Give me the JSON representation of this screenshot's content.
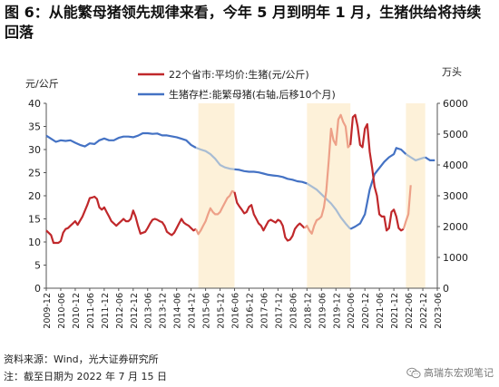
{
  "title": "图 6：从能繁母猪领先规律来看，今年 5 月到明年 1 月，生猪供给将持续回落",
  "source": "资料来源：Wind，光大证券研究所",
  "note": "注：截至日期为 2022 年 7 月 15 日",
  "watermark": "高瑞东宏观笔记",
  "chart_data": {
    "type": "line",
    "left_axis": {
      "label": "元/公斤",
      "ticks": [
        0,
        5,
        10,
        15,
        20,
        25,
        30,
        35,
        40
      ],
      "ylim": [
        0,
        40
      ]
    },
    "right_axis": {
      "label": "万头",
      "ticks": [
        0,
        1000,
        2000,
        3000,
        4000,
        5000,
        6000
      ],
      "ylim": [
        0,
        6000
      ]
    },
    "x_ticks": [
      "2009-12",
      "2010-06",
      "2010-12",
      "2011-06",
      "2011-12",
      "2012-06",
      "2012-12",
      "2013-06",
      "2013-12",
      "2014-06",
      "2014-12",
      "2015-06",
      "2015-12",
      "2016-06",
      "2016-12",
      "2017-06",
      "2017-12",
      "2018-06",
      "2018-12",
      "2019-06",
      "2019-12",
      "2020-06",
      "2020-12",
      "2021-06",
      "2021-12",
      "2022-06",
      "2022-12",
      "2023-06"
    ],
    "x_start": "2009-12",
    "x_end": "2023-06",
    "shaded_ranges": [
      [
        "2015-03",
        "2016-06"
      ],
      [
        "2018-12",
        "2020-06"
      ],
      [
        "2022-05",
        "2023-01"
      ]
    ],
    "colors": {
      "price": "#c0282b",
      "price_light": "#eda088",
      "sows": "#4472c4",
      "sows_light": "#a8bcd3",
      "shade": "#fdf1d9"
    },
    "legend_placement": "top-center",
    "series": [
      {
        "name": "22个省市:平均价:生猪(元/公斤)",
        "axis": "left",
        "points": [
          [
            "2009-12",
            12.5
          ],
          [
            "2010-02",
            11.5
          ],
          [
            "2010-03",
            9.8
          ],
          [
            "2010-05",
            9.8
          ],
          [
            "2010-06",
            10.2
          ],
          [
            "2010-07",
            12.0
          ],
          [
            "2010-08",
            12.8
          ],
          [
            "2010-09",
            13.0
          ],
          [
            "2010-10",
            13.5
          ],
          [
            "2010-11",
            14.0
          ],
          [
            "2010-12",
            14.5
          ],
          [
            "2011-01",
            13.7
          ],
          [
            "2011-03",
            15.5
          ],
          [
            "2011-05",
            18.0
          ],
          [
            "2011-06",
            19.5
          ],
          [
            "2011-07",
            19.6
          ],
          [
            "2011-08",
            19.8
          ],
          [
            "2011-09",
            19.3
          ],
          [
            "2011-10",
            17.5
          ],
          [
            "2011-11",
            17.0
          ],
          [
            "2011-12",
            17.5
          ],
          [
            "2012-01",
            16.5
          ],
          [
            "2012-02",
            15.5
          ],
          [
            "2012-03",
            14.5
          ],
          [
            "2012-04",
            14.0
          ],
          [
            "2012-05",
            13.5
          ],
          [
            "2012-06",
            14.0
          ],
          [
            "2012-07",
            14.5
          ],
          [
            "2012-08",
            15.0
          ],
          [
            "2012-09",
            14.5
          ],
          [
            "2012-10",
            14.5
          ],
          [
            "2012-11",
            15.0
          ],
          [
            "2012-12",
            16.8
          ],
          [
            "2013-01",
            15.5
          ],
          [
            "2013-02",
            13.5
          ],
          [
            "2013-03",
            11.8
          ],
          [
            "2013-04",
            12.0
          ],
          [
            "2013-05",
            12.2
          ],
          [
            "2013-06",
            13.0
          ],
          [
            "2013-07",
            14.0
          ],
          [
            "2013-08",
            14.8
          ],
          [
            "2013-09",
            15.0
          ],
          [
            "2013-10",
            14.8
          ],
          [
            "2013-11",
            14.5
          ],
          [
            "2013-12",
            14.3
          ],
          [
            "2014-01",
            13.5
          ],
          [
            "2014-02",
            12.2
          ],
          [
            "2014-03",
            11.8
          ],
          [
            "2014-04",
            11.5
          ],
          [
            "2014-05",
            12.0
          ],
          [
            "2014-06",
            13.0
          ],
          [
            "2014-07",
            14.0
          ],
          [
            "2014-08",
            15.0
          ],
          [
            "2014-09",
            14.2
          ],
          [
            "2014-10",
            13.8
          ],
          [
            "2014-11",
            13.5
          ],
          [
            "2014-12",
            13.0
          ],
          [
            "2015-01",
            12.5
          ],
          [
            "2015-02",
            12.8
          ],
          [
            "2015-03",
            11.7
          ],
          [
            "2015-04",
            12.5
          ],
          [
            "2015-05",
            13.5
          ],
          [
            "2015-06",
            14.5
          ],
          [
            "2015-07",
            16.0
          ],
          [
            "2015-08",
            17.3
          ],
          [
            "2015-09",
            16.5
          ],
          [
            "2015-10",
            16.0
          ],
          [
            "2015-11",
            16.0
          ],
          [
            "2015-12",
            16.5
          ],
          [
            "2016-01",
            17.5
          ],
          [
            "2016-02",
            18.5
          ],
          [
            "2016-03",
            19.5
          ],
          [
            "2016-04",
            20.0
          ],
          [
            "2016-05",
            21.0
          ],
          [
            "2016-06",
            20.8
          ],
          [
            "2016-07",
            18.5
          ],
          [
            "2016-08",
            17.7
          ],
          [
            "2016-09",
            17.0
          ],
          [
            "2016-10",
            16.2
          ],
          [
            "2016-11",
            16.5
          ],
          [
            "2016-12",
            17.6
          ],
          [
            "2017-01",
            18.0
          ],
          [
            "2017-02",
            16.0
          ],
          [
            "2017-03",
            15.0
          ],
          [
            "2017-04",
            14.0
          ],
          [
            "2017-05",
            13.5
          ],
          [
            "2017-06",
            12.5
          ],
          [
            "2017-07",
            13.5
          ],
          [
            "2017-08",
            14.5
          ],
          [
            "2017-09",
            14.8
          ],
          [
            "2017-10",
            14.5
          ],
          [
            "2017-11",
            14.2
          ],
          [
            "2017-12",
            14.8
          ],
          [
            "2018-01",
            14.5
          ],
          [
            "2018-02",
            13.5
          ],
          [
            "2018-03",
            11.0
          ],
          [
            "2018-04",
            10.3
          ],
          [
            "2018-05",
            10.5
          ],
          [
            "2018-06",
            11.3
          ],
          [
            "2018-07",
            12.8
          ],
          [
            "2018-08",
            13.5
          ],
          [
            "2018-09",
            14.0
          ],
          [
            "2018-10",
            13.5
          ],
          [
            "2018-11",
            13.0
          ],
          [
            "2018-12",
            13.5
          ],
          [
            "2019-01",
            12.5
          ],
          [
            "2019-02",
            11.8
          ],
          [
            "2019-03",
            13.5
          ],
          [
            "2019-04",
            14.7
          ],
          [
            "2019-05",
            15.0
          ],
          [
            "2019-06",
            15.5
          ],
          [
            "2019-07",
            17.5
          ],
          [
            "2019-08",
            21.0
          ],
          [
            "2019-09",
            27.5
          ],
          [
            "2019-10",
            34.5
          ],
          [
            "2019-11",
            32.0
          ],
          [
            "2019-12",
            31.0
          ],
          [
            "2020-01",
            36.5
          ],
          [
            "2020-02",
            37.5
          ],
          [
            "2020-03",
            36.0
          ],
          [
            "2020-04",
            35.0
          ],
          [
            "2020-05",
            30.5
          ],
          [
            "2020-06",
            31.0
          ],
          [
            "2020-07",
            37.0
          ],
          [
            "2020-08",
            37.5
          ],
          [
            "2020-09",
            35.0
          ],
          [
            "2020-10",
            31.0
          ],
          [
            "2020-11",
            30.5
          ],
          [
            "2020-12",
            34.5
          ],
          [
            "2021-01",
            35.5
          ],
          [
            "2021-02",
            29.5
          ],
          [
            "2021-03",
            26.0
          ],
          [
            "2021-04",
            22.0
          ],
          [
            "2021-05",
            20.0
          ],
          [
            "2021-06",
            16.0
          ],
          [
            "2021-07",
            15.5
          ],
          [
            "2021-08",
            15.5
          ],
          [
            "2021-09",
            12.5
          ],
          [
            "2021-10",
            13.0
          ],
          [
            "2021-11",
            16.5
          ],
          [
            "2021-12",
            17.0
          ],
          [
            "2022-01",
            15.5
          ],
          [
            "2022-02",
            13.0
          ],
          [
            "2022-03",
            12.5
          ],
          [
            "2022-04",
            12.8
          ],
          [
            "2022-05",
            14.5
          ],
          [
            "2022-06",
            16.0
          ],
          [
            "2022-07",
            22.3
          ]
        ]
      },
      {
        "name": "生猪存栏:能繁母猪(右轴,后移10个月)",
        "axis": "right",
        "points": [
          [
            "2009-12",
            4950
          ],
          [
            "2010-02",
            4850
          ],
          [
            "2010-04",
            4750
          ],
          [
            "2010-06",
            4800
          ],
          [
            "2010-08",
            4780
          ],
          [
            "2010-10",
            4800
          ],
          [
            "2010-12",
            4720
          ],
          [
            "2011-02",
            4650
          ],
          [
            "2011-04",
            4600
          ],
          [
            "2011-06",
            4700
          ],
          [
            "2011-08",
            4680
          ],
          [
            "2011-10",
            4800
          ],
          [
            "2011-12",
            4860
          ],
          [
            "2012-02",
            4800
          ],
          [
            "2012-04",
            4800
          ],
          [
            "2012-06",
            4880
          ],
          [
            "2012-08",
            4920
          ],
          [
            "2012-10",
            4920
          ],
          [
            "2012-12",
            4900
          ],
          [
            "2013-02",
            4950
          ],
          [
            "2013-04",
            5030
          ],
          [
            "2013-06",
            5030
          ],
          [
            "2013-08",
            5010
          ],
          [
            "2013-10",
            5020
          ],
          [
            "2013-12",
            4960
          ],
          [
            "2014-02",
            4960
          ],
          [
            "2014-04",
            4930
          ],
          [
            "2014-06",
            4900
          ],
          [
            "2014-08",
            4850
          ],
          [
            "2014-10",
            4800
          ],
          [
            "2014-12",
            4650
          ],
          [
            "2015-02",
            4560
          ],
          [
            "2015-04",
            4500
          ],
          [
            "2015-06",
            4450
          ],
          [
            "2015-08",
            4350
          ],
          [
            "2015-10",
            4200
          ],
          [
            "2015-12",
            4000
          ],
          [
            "2016-02",
            3920
          ],
          [
            "2016-04",
            3880
          ],
          [
            "2016-06",
            3860
          ],
          [
            "2016-08",
            3840
          ],
          [
            "2016-10",
            3800
          ],
          [
            "2016-12",
            3780
          ],
          [
            "2017-02",
            3780
          ],
          [
            "2017-04",
            3760
          ],
          [
            "2017-06",
            3720
          ],
          [
            "2017-08",
            3680
          ],
          [
            "2017-10",
            3660
          ],
          [
            "2017-12",
            3640
          ],
          [
            "2018-02",
            3610
          ],
          [
            "2018-04",
            3550
          ],
          [
            "2018-06",
            3520
          ],
          [
            "2018-08",
            3470
          ],
          [
            "2018-10",
            3450
          ],
          [
            "2018-12",
            3400
          ],
          [
            "2019-02",
            3300
          ],
          [
            "2019-04",
            3200
          ],
          [
            "2019-06",
            3050
          ],
          [
            "2019-08",
            2900
          ],
          [
            "2019-10",
            2750
          ],
          [
            "2019-12",
            2550
          ],
          [
            "2020-02",
            2300
          ],
          [
            "2020-04",
            2100
          ],
          [
            "2020-06",
            1920
          ],
          [
            "2020-08",
            2000
          ],
          [
            "2020-10",
            2100
          ],
          [
            "2020-12",
            2400
          ],
          [
            "2021-02",
            3200
          ],
          [
            "2021-04",
            3700
          ],
          [
            "2021-06",
            3900
          ],
          [
            "2021-08",
            4100
          ],
          [
            "2021-10",
            4250
          ],
          [
            "2021-12",
            4350
          ],
          [
            "2022-01",
            4550
          ],
          [
            "2022-03",
            4500
          ],
          [
            "2022-05",
            4350
          ],
          [
            "2022-07",
            4250
          ],
          [
            "2022-09",
            4150
          ],
          [
            "2022-11",
            4200
          ],
          [
            "2023-01",
            4250
          ],
          [
            "2023-03",
            4150
          ],
          [
            "2023-05",
            4150
          ]
        ]
      }
    ]
  }
}
